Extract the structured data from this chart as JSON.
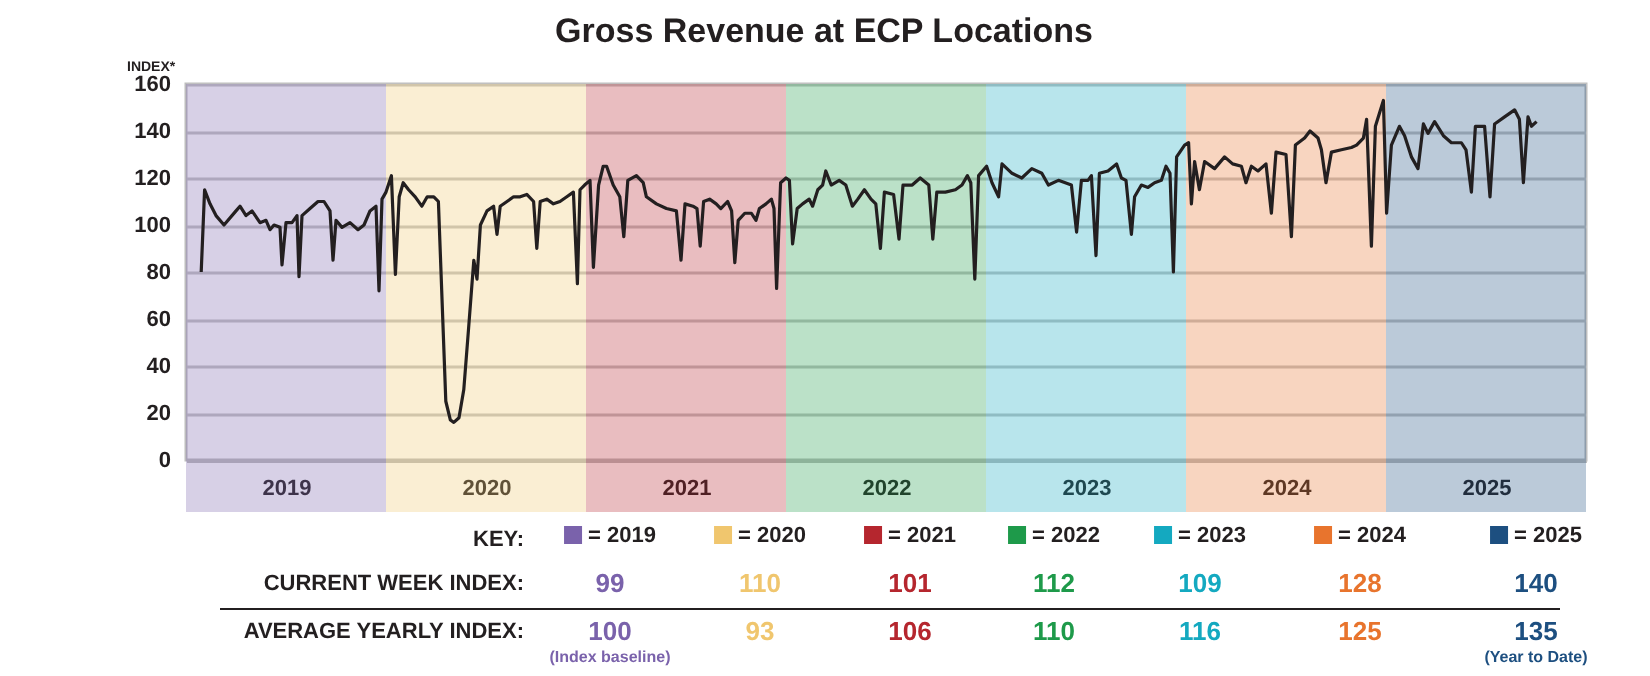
{
  "chart_data": {
    "type": "line",
    "title": "Gross Revenue at ECP Locations",
    "ylabel": "INDEX*",
    "xlim": [
      2019,
      2026
    ],
    "ylim": [
      0,
      160
    ],
    "yticks": [
      0,
      20,
      40,
      60,
      80,
      100,
      120,
      140,
      160
    ],
    "grid": "y",
    "line_style": "solid",
    "xticks": [
      {
        "value": 2019.5,
        "label": "2019"
      },
      {
        "value": 2020.5,
        "label": "2020"
      },
      {
        "value": 2021.5,
        "label": "2021"
      },
      {
        "value": 2022.5,
        "label": "2022"
      },
      {
        "value": 2023.5,
        "label": "2023"
      },
      {
        "value": 2024.5,
        "label": "2024"
      },
      {
        "value": 2025.5,
        "label": "2025"
      }
    ],
    "x": [
      2019.076,
      2019.093,
      2019.12,
      2019.15,
      2019.19,
      2019.25,
      2019.27,
      2019.3,
      2019.33,
      2019.37,
      2019.4,
      2019.42,
      2019.44,
      2019.47,
      2019.48,
      2019.5,
      2019.53,
      2019.555,
      2019.565,
      2019.58,
      2019.62,
      2019.66,
      2019.69,
      2019.72,
      2019.735,
      2019.75,
      2019.78,
      2019.82,
      2019.86,
      2019.89,
      2019.92,
      2019.95,
      2019.965,
      2019.98,
      2020.0,
      2020.027,
      2020.047,
      2020.066,
      2020.086,
      2020.113,
      2020.146,
      2020.179,
      2020.206,
      2020.239,
      2020.262,
      2020.299,
      2020.322,
      2020.339,
      2020.365,
      2020.389,
      2020.412,
      2020.439,
      2020.455,
      2020.472,
      2020.505,
      2020.538,
      2020.555,
      2020.571,
      2020.605,
      2020.638,
      2020.671,
      2020.704,
      2020.738,
      2020.754,
      2020.771,
      2020.804,
      2020.837,
      2020.87,
      2020.904,
      2020.937,
      2020.957,
      2020.97,
      2020.993,
      2021.02,
      2021.037,
      2021.063,
      2021.086,
      2021.103,
      2021.136,
      2021.169,
      2021.189,
      2021.209,
      2021.252,
      2021.286,
      2021.302,
      2021.352,
      2021.402,
      2021.452,
      2021.475,
      2021.495,
      2021.535,
      2021.555,
      2021.571,
      2021.588,
      2021.618,
      2021.651,
      2021.674,
      2021.708,
      2021.728,
      2021.744,
      2021.761,
      2021.794,
      2021.827,
      2021.85,
      2021.867,
      2021.9,
      2021.927,
      2021.94,
      2021.953,
      2021.973,
      2022.0,
      2022.017,
      2022.033,
      2022.056,
      2022.083,
      2022.116,
      2022.133,
      2022.159,
      2022.183,
      2022.199,
      2022.226,
      2022.266,
      2022.299,
      2022.332,
      2022.359,
      2022.392,
      2022.425,
      2022.449,
      2022.472,
      2022.492,
      2022.538,
      2022.565,
      2022.585,
      2022.631,
      2022.671,
      2022.714,
      2022.734,
      2022.754,
      2022.797,
      2022.847,
      2022.88,
      2022.907,
      2022.924,
      2022.944,
      2022.963,
      2023.003,
      2023.03,
      2023.063,
      2023.08,
      2023.13,
      2023.179,
      2023.229,
      2023.279,
      2023.312,
      2023.362,
      2023.427,
      2023.453,
      2023.477,
      2023.51,
      2023.527,
      2023.55,
      2023.567,
      2023.61,
      2023.653,
      2023.677,
      2023.7,
      2023.727,
      2023.743,
      2023.777,
      2023.81,
      2023.843,
      2023.877,
      2023.9,
      2023.92,
      2023.937,
      2023.953,
      2023.993,
      2024.013,
      2024.027,
      2024.043,
      2024.067,
      2024.093,
      2024.143,
      2024.193,
      2024.233,
      2024.277,
      2024.3,
      2024.327,
      2024.36,
      2024.4,
      2024.427,
      2024.45,
      2024.5,
      2024.527,
      2024.547,
      2024.593,
      2024.62,
      2024.66,
      2024.677,
      2024.7,
      2024.727,
      2024.777,
      2024.827,
      2024.853,
      2024.887,
      2024.903,
      2024.927,
      2024.947,
      2024.987,
      2025.003,
      2025.027,
      2025.067,
      2025.093,
      2025.127,
      2025.16,
      2025.187,
      2025.21,
      2025.243,
      2025.287,
      2025.327,
      2025.377,
      2025.4,
      2025.427,
      2025.447,
      2025.493,
      2025.52,
      2025.543,
      2025.593,
      2025.643,
      2025.667,
      2025.687,
      2025.71,
      2025.727,
      2025.753
    ],
    "series": [
      {
        "color": "#231f20",
        "values": [
          80,
          115,
          109,
          104,
          100,
          106,
          108,
          104,
          106,
          101,
          102,
          98,
          100,
          99,
          83,
          101,
          101,
          104,
          78,
          104,
          107,
          110,
          110,
          106,
          85,
          102,
          99,
          101,
          98,
          100,
          106,
          108,
          72,
          111,
          114,
          121,
          79,
          112,
          118,
          115,
          112,
          108,
          112,
          112,
          110,
          25,
          17,
          16,
          18,
          30,
          55,
          85,
          77,
          100,
          106,
          108,
          96,
          108,
          110,
          112,
          112,
          113,
          110,
          90,
          110,
          111,
          109,
          110,
          112,
          114,
          75,
          115,
          117,
          119,
          82,
          117,
          125,
          125,
          117,
          112,
          95,
          119,
          121,
          118,
          112,
          109,
          107,
          106,
          85,
          109,
          108,
          107,
          91,
          110,
          111,
          109,
          107,
          110,
          106,
          84,
          102,
          105,
          105,
          102,
          107,
          109,
          111,
          107,
          73,
          118,
          120,
          119,
          92,
          107,
          109,
          111,
          108,
          115,
          117,
          123,
          117,
          119,
          117,
          108,
          111,
          115,
          111,
          109,
          90,
          114,
          113,
          94,
          117,
          117,
          120,
          117,
          94,
          114,
          114,
          115,
          117,
          121,
          118,
          77,
          121,
          125,
          118,
          112,
          126,
          122,
          120,
          124,
          122,
          117,
          119,
          117,
          97,
          119,
          119,
          121,
          87,
          122,
          123,
          126,
          120,
          119,
          96,
          112,
          117,
          116,
          118,
          119,
          125,
          122,
          80,
          129,
          134,
          135,
          109,
          127,
          115,
          127,
          124,
          129,
          126,
          125,
          118,
          125,
          123,
          126,
          105,
          131,
          130,
          95,
          134,
          137,
          140,
          137,
          132,
          118,
          131,
          132,
          133,
          134,
          137,
          145,
          91,
          142,
          153,
          105,
          134,
          142,
          138,
          129,
          124,
          143,
          139,
          144,
          138,
          135,
          135,
          132,
          114,
          142,
          142,
          112,
          143,
          146,
          149,
          145,
          118,
          146,
          142,
          144
        ]
      }
    ],
    "bands": [
      {
        "axis": "x",
        "from": 2019,
        "to": 2020,
        "color": "#7a62ab"
      },
      {
        "axis": "x",
        "from": 2020,
        "to": 2021,
        "color": "#f0c66e"
      },
      {
        "axis": "x",
        "from": 2021,
        "to": 2022,
        "color": "#b5262e"
      },
      {
        "axis": "x",
        "from": 2022,
        "to": 2023,
        "color": "#1e9a4a"
      },
      {
        "axis": "x",
        "from": 2023,
        "to": 2024,
        "color": "#14a9c0"
      },
      {
        "axis": "x",
        "from": 2024,
        "to": 2025,
        "color": "#e8742d"
      },
      {
        "axis": "x",
        "from": 2025,
        "to": 2026,
        "color": "#1d4f80"
      }
    ],
    "annotations": [
      "KEY:",
      "= 2019",
      "= 2020",
      "= 2021",
      "= 2022",
      "= 2023",
      "= 2024",
      "= 2025",
      "CURRENT WEEK INDEX:",
      "99",
      "110",
      "101",
      "112",
      "109",
      "128",
      "140",
      "AVERAGE YEARLY INDEX:",
      "100",
      "93",
      "106",
      "110",
      "116",
      "125",
      "135",
      "(Index baseline)",
      "(Year to Date)"
    ]
  }
}
